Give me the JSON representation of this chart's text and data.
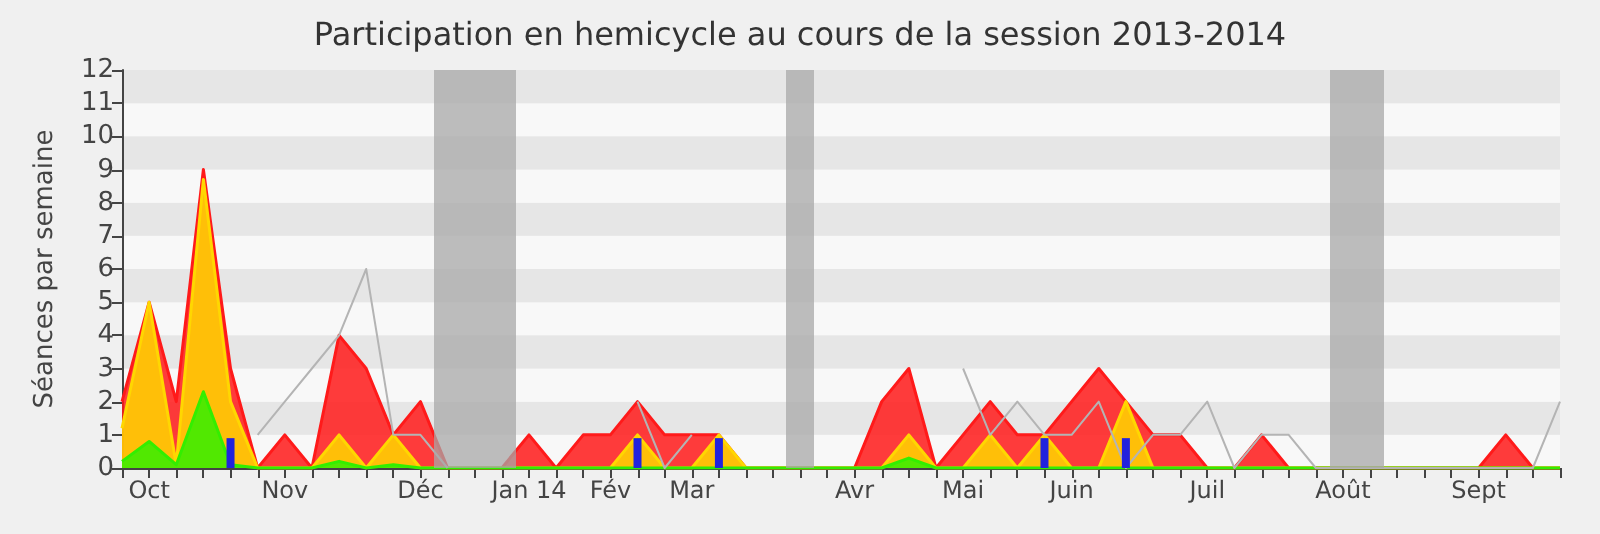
{
  "chart_data": {
    "type": "area",
    "title": "Participation en hemicycle au cours de la session 2013-2014",
    "ylabel": "Séances par semaine",
    "categories": [
      null,
      "Oct",
      null,
      null,
      null,
      null,
      "Nov",
      null,
      null,
      null,
      null,
      "Déc",
      null,
      null,
      null,
      "Jan 14",
      null,
      null,
      "Fév",
      null,
      null,
      "Mar",
      null,
      null,
      null,
      null,
      null,
      "Avr",
      null,
      null,
      null,
      "Mai",
      null,
      null,
      null,
      "Juin",
      null,
      null,
      null,
      null,
      "Juil",
      null,
      null,
      null,
      null,
      "Août",
      null,
      null,
      null,
      null,
      "Sept",
      null,
      null,
      null
    ],
    "series": [
      {
        "color": "#ff1a1a",
        "values": [
          2,
          5,
          2,
          9,
          3,
          0,
          1,
          0,
          4,
          3,
          1,
          2,
          0,
          0,
          0,
          1,
          0,
          1,
          1,
          2,
          1,
          1,
          1,
          0,
          0,
          0,
          0,
          0,
          2,
          3,
          0,
          1,
          2,
          1,
          1,
          2,
          3,
          2,
          1,
          1,
          0,
          0,
          1,
          0,
          0,
          0,
          0,
          0,
          0,
          0,
          0,
          1,
          0,
          0
        ]
      },
      {
        "color": "#ffd700",
        "values": [
          1.2,
          5,
          0.1,
          8.7,
          2,
          0,
          0,
          0,
          1,
          0,
          1,
          0,
          0,
          0,
          0,
          0,
          0,
          0,
          0,
          1,
          0,
          0,
          1,
          0,
          0,
          0,
          0,
          0,
          0,
          1,
          0,
          0,
          1,
          0,
          1,
          0,
          0,
          2,
          0,
          0,
          0,
          0,
          0,
          0,
          0,
          0,
          0,
          0,
          0,
          0,
          0,
          0,
          0,
          0
        ]
      },
      {
        "color": "#33ee00",
        "values": [
          0.2,
          0.8,
          0.1,
          2.3,
          0.1,
          0,
          0,
          0,
          0.2,
          0,
          0.1,
          0,
          0,
          0,
          0,
          0,
          0,
          0,
          0,
          0,
          0,
          0,
          0,
          0,
          0,
          0,
          0,
          0,
          0,
          0.3,
          0,
          0,
          0,
          0,
          0,
          0,
          0,
          0,
          0,
          0,
          0,
          0,
          0,
          0,
          0,
          0,
          0,
          0,
          0,
          0,
          0,
          0,
          0,
          0
        ]
      },
      {
        "type": "bar",
        "color": "#2222dd",
        "values": [
          null,
          null,
          null,
          null,
          0.9,
          null,
          null,
          null,
          null,
          null,
          null,
          null,
          null,
          null,
          null,
          null,
          null,
          null,
          null,
          0.9,
          null,
          null,
          0.9,
          null,
          null,
          null,
          null,
          null,
          null,
          null,
          null,
          null,
          null,
          null,
          0.9,
          null,
          null,
          0.9,
          null,
          null,
          null,
          null,
          null,
          null,
          null,
          null,
          null,
          null,
          null,
          null,
          null,
          null,
          null,
          null
        ]
      },
      {
        "type": "line",
        "color": "#b4b4b4",
        "values": [
          null,
          null,
          null,
          null,
          null,
          1,
          2,
          3,
          4,
          6,
          1,
          1,
          0,
          null,
          null,
          null,
          null,
          null,
          null,
          2,
          0,
          1,
          null,
          null,
          null,
          null,
          null,
          null,
          null,
          null,
          null,
          3,
          1,
          2,
          1,
          1,
          2,
          0,
          1,
          1,
          2,
          0,
          1,
          1,
          0,
          0,
          0,
          0,
          0,
          0,
          0,
          0,
          0,
          2
        ]
      }
    ],
    "ylim": [
      0,
      12
    ],
    "yticks": [
      0,
      1,
      2,
      3,
      4,
      5,
      6,
      7,
      8,
      9,
      10,
      11,
      12
    ],
    "marker": "none"
  }
}
